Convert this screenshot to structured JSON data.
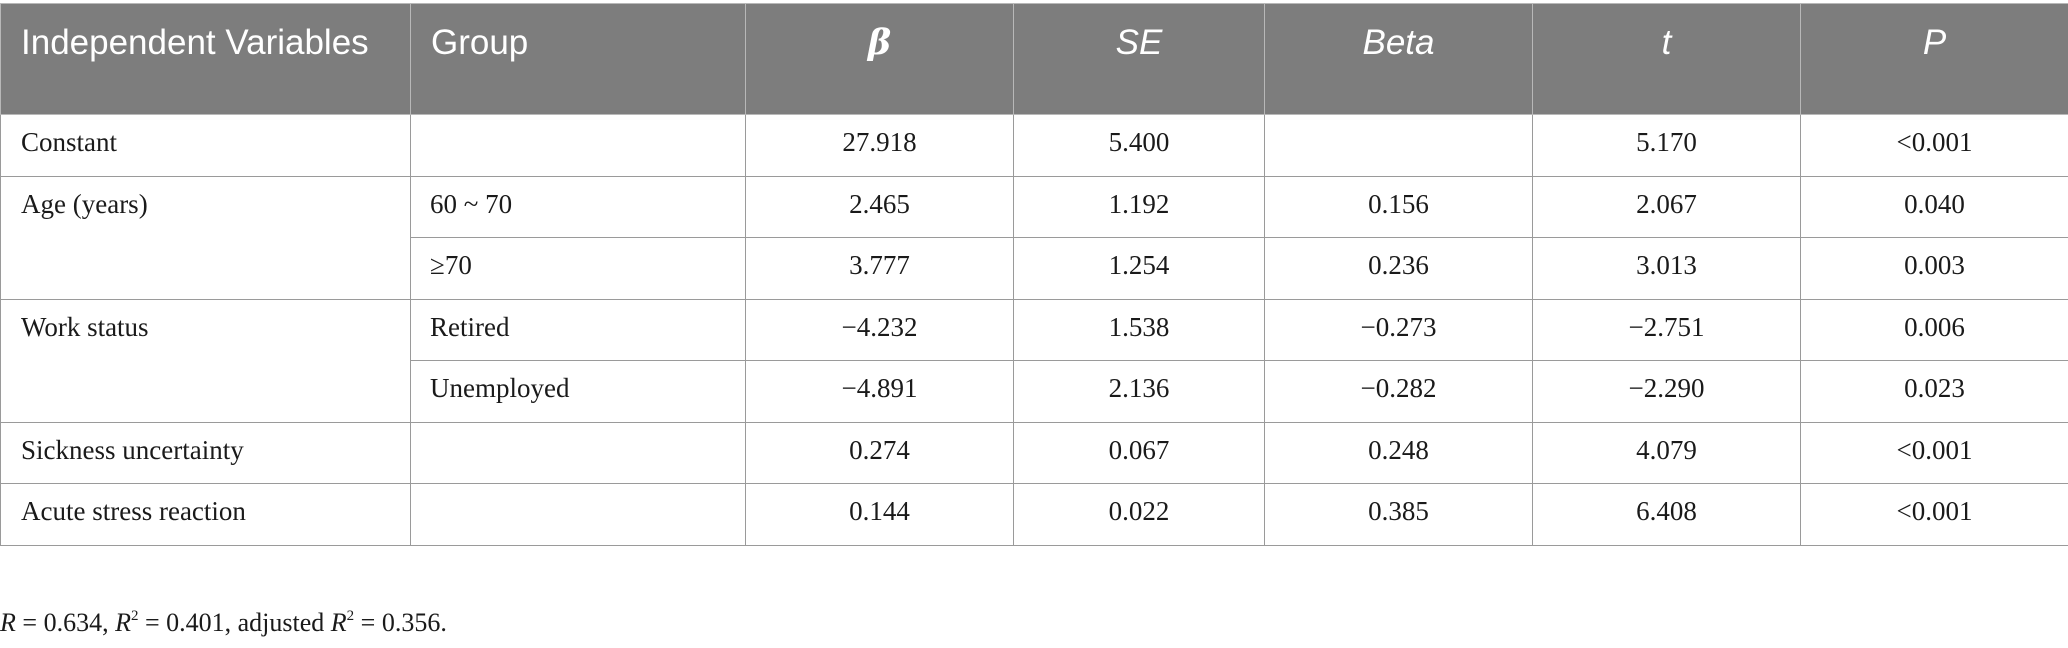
{
  "table": {
    "headers": [
      "Independent Variables",
      "Group",
      "β",
      "SE",
      "Beta",
      "t",
      "P"
    ],
    "rows": [
      {
        "variable": "Constant",
        "group": "",
        "b": "27.918",
        "se": "5.400",
        "beta": "",
        "t": "5.170",
        "p": "<0.001"
      },
      {
        "variable": "Age (years)",
        "group": "60 ~ 70",
        "b": "2.465",
        "se": "1.192",
        "beta": "0.156",
        "t": "2.067",
        "p": "0.040"
      },
      {
        "variable": "",
        "group": "≥70",
        "b": "3.777",
        "se": "1.254",
        "beta": "0.236",
        "t": "3.013",
        "p": "0.003"
      },
      {
        "variable": "Work status",
        "group": "Retired",
        "b": "−4.232",
        "se": "1.538",
        "beta": "−0.273",
        "t": "−2.751",
        "p": "0.006"
      },
      {
        "variable": "",
        "group": "Unemployed",
        "b": "−4.891",
        "se": "2.136",
        "beta": "−0.282",
        "t": "−2.290",
        "p": "0.023"
      },
      {
        "variable": "Sickness uncertainty",
        "group": "",
        "b": "0.274",
        "se": "0.067",
        "beta": "0.248",
        "t": "4.079",
        "p": "<0.001"
      },
      {
        "variable": "Acute stress reaction",
        "group": "",
        "b": "0.144",
        "se": "0.022",
        "beta": "0.385",
        "t": "6.408",
        "p": "<0.001"
      }
    ]
  },
  "footnote": {
    "r_label": "R",
    "r_value": "0.634",
    "r2_label": "R",
    "r2_sup": "2",
    "r2_value": "0.401",
    "adjusted_text": "adjusted",
    "adj_r2_label": "R",
    "adj_r2_sup": "2",
    "adj_r2_value": "0.356"
  }
}
